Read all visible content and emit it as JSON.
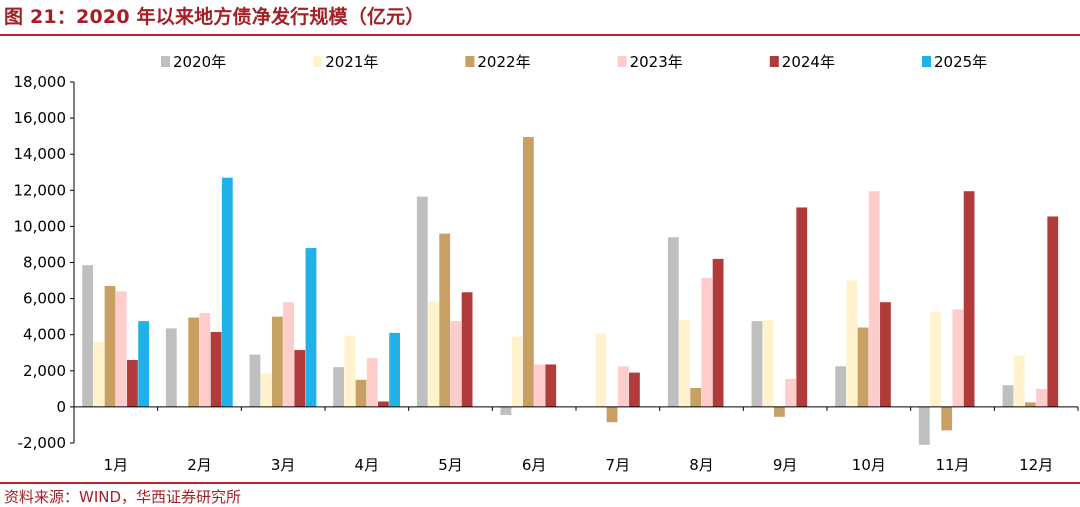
{
  "title": "图 21：2020 年以来地方债净发行规模（亿元）",
  "source": "资料来源：WIND，华西证券研究所",
  "chart_data": {
    "type": "bar",
    "categories": [
      "1月",
      "2月",
      "3月",
      "4月",
      "5月",
      "6月",
      "7月",
      "8月",
      "9月",
      "10月",
      "11月",
      "12月"
    ],
    "series": [
      {
        "name": "2020年",
        "color": "#bfbfbf",
        "values": [
          7850,
          4350,
          2900,
          2200,
          11650,
          -450,
          null,
          9400,
          4750,
          2250,
          -2100,
          1200
        ]
      },
      {
        "name": "2021年",
        "color": "#fff2cc",
        "values": [
          3600,
          null,
          1850,
          3950,
          5850,
          3900,
          4050,
          4800,
          4800,
          7000,
          5250,
          2850
        ]
      },
      {
        "name": "2022年",
        "color": "#c9a064",
        "values": [
          6700,
          4950,
          5000,
          1500,
          9600,
          14950,
          -850,
          1050,
          -550,
          4400,
          -1300,
          250
        ]
      },
      {
        "name": "2023年",
        "color": "#ffcccc",
        "values": [
          6400,
          5200,
          5800,
          2700,
          4750,
          2350,
          2250,
          7150,
          1550,
          11950,
          5400,
          1000
        ]
      },
      {
        "name": "2024年",
        "color": "#b13b3b",
        "values": [
          2600,
          4150,
          3150,
          300,
          6350,
          2350,
          1900,
          8200,
          11050,
          5800,
          11950,
          10550
        ]
      },
      {
        "name": "2025年",
        "color": "#1fb1e8",
        "values": [
          4750,
          12700,
          8800,
          4100,
          null,
          null,
          null,
          null,
          null,
          null,
          null,
          null
        ]
      }
    ],
    "yticks": [
      "-2,000",
      "0",
      "2,000",
      "4,000",
      "6,000",
      "8,000",
      "10,000",
      "12,000",
      "14,000",
      "16,000",
      "18,000"
    ],
    "ylim": [
      -2000,
      18000
    ],
    "legend_position": "top",
    "grid": false
  }
}
